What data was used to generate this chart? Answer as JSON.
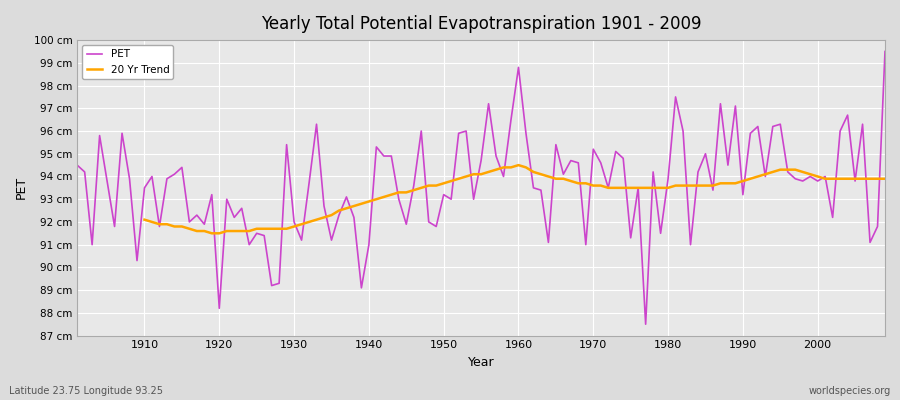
{
  "title": "Yearly Total Potential Evapotranspiration 1901 - 2009",
  "xlabel": "Year",
  "ylabel": "PET",
  "subtitle_left": "Latitude 23.75 Longitude 93.25",
  "subtitle_right": "worldspecies.org",
  "pet_color": "#cc44cc",
  "trend_color": "#ffa500",
  "background_color": "#dcdcdc",
  "plot_bg_color": "#e8e8e8",
  "ylim": [
    87,
    100
  ],
  "xlim": [
    1901,
    2009
  ],
  "years": [
    1901,
    1902,
    1903,
    1904,
    1905,
    1906,
    1907,
    1908,
    1909,
    1910,
    1911,
    1912,
    1913,
    1914,
    1915,
    1916,
    1917,
    1918,
    1919,
    1920,
    1921,
    1922,
    1923,
    1924,
    1925,
    1926,
    1927,
    1928,
    1929,
    1930,
    1931,
    1932,
    1933,
    1934,
    1935,
    1936,
    1937,
    1938,
    1939,
    1940,
    1941,
    1942,
    1943,
    1944,
    1945,
    1946,
    1947,
    1948,
    1949,
    1950,
    1951,
    1952,
    1953,
    1954,
    1955,
    1956,
    1957,
    1958,
    1959,
    1960,
    1961,
    1962,
    1963,
    1964,
    1965,
    1966,
    1967,
    1968,
    1969,
    1970,
    1971,
    1972,
    1973,
    1974,
    1975,
    1976,
    1977,
    1978,
    1979,
    1980,
    1981,
    1982,
    1983,
    1984,
    1985,
    1986,
    1987,
    1988,
    1989,
    1990,
    1991,
    1992,
    1993,
    1994,
    1995,
    1996,
    1997,
    1998,
    1999,
    2000,
    2001,
    2002,
    2003,
    2004,
    2005,
    2006,
    2007,
    2008,
    2009
  ],
  "pet_values": [
    94.5,
    94.2,
    91.0,
    95.8,
    93.8,
    91.8,
    95.9,
    93.9,
    90.3,
    93.5,
    94.0,
    91.8,
    93.9,
    94.1,
    94.4,
    92.0,
    92.3,
    91.9,
    93.2,
    88.2,
    93.0,
    92.2,
    92.6,
    91.0,
    91.5,
    91.4,
    89.2,
    89.3,
    95.4,
    92.0,
    91.2,
    93.7,
    96.3,
    92.7,
    91.2,
    92.3,
    93.1,
    92.2,
    89.1,
    91.0,
    95.3,
    94.9,
    94.9,
    93.0,
    91.9,
    93.6,
    96.0,
    92.0,
    91.8,
    93.2,
    93.0,
    95.9,
    96.0,
    93.0,
    94.7,
    97.2,
    94.9,
    94.0,
    96.5,
    98.8,
    95.9,
    93.5,
    93.4,
    91.1,
    95.4,
    94.1,
    94.7,
    94.6,
    91.0,
    95.2,
    94.6,
    93.5,
    95.1,
    94.8,
    91.3,
    93.5,
    87.5,
    94.2,
    91.5,
    93.9,
    97.5,
    96.0,
    91.0,
    94.2,
    95.0,
    93.4,
    97.2,
    94.5,
    97.1,
    93.2,
    95.9,
    96.2,
    94.0,
    96.2,
    96.3,
    94.2,
    93.9,
    93.8,
    94.0,
    93.8,
    94.0,
    92.2,
    96.0,
    96.7,
    93.8,
    96.3,
    91.1,
    91.8,
    99.5
  ],
  "trend_years": [
    1910,
    1911,
    1912,
    1913,
    1914,
    1915,
    1916,
    1917,
    1918,
    1919,
    1920,
    1921,
    1922,
    1923,
    1924,
    1925,
    1926,
    1927,
    1928,
    1929,
    1930,
    1931,
    1932,
    1933,
    1934,
    1935,
    1936,
    1937,
    1938,
    1939,
    1940,
    1941,
    1942,
    1943,
    1944,
    1945,
    1946,
    1947,
    1948,
    1949,
    1950,
    1951,
    1952,
    1953,
    1954,
    1955,
    1956,
    1957,
    1958,
    1959,
    1960,
    1961,
    1962,
    1963,
    1964,
    1965,
    1966,
    1967,
    1968,
    1969,
    1970,
    1971,
    1972,
    1973,
    1974,
    1975,
    1976,
    1977,
    1978,
    1979,
    1980,
    1981,
    1982,
    1983,
    1984,
    1985,
    1986,
    1987,
    1988,
    1989,
    1990,
    1991,
    1992,
    1993,
    1994,
    1995,
    1996,
    1997,
    1998,
    1999,
    2000,
    2001,
    2002,
    2003,
    2004,
    2005,
    2006,
    2007,
    2008,
    2009
  ],
  "trend_values": [
    92.1,
    92.0,
    91.9,
    91.9,
    91.8,
    91.8,
    91.7,
    91.6,
    91.6,
    91.5,
    91.5,
    91.6,
    91.6,
    91.6,
    91.6,
    91.7,
    91.7,
    91.7,
    91.7,
    91.7,
    91.8,
    91.9,
    92.0,
    92.1,
    92.2,
    92.3,
    92.5,
    92.6,
    92.7,
    92.8,
    92.9,
    93.0,
    93.1,
    93.2,
    93.3,
    93.3,
    93.4,
    93.5,
    93.6,
    93.6,
    93.7,
    93.8,
    93.9,
    94.0,
    94.1,
    94.1,
    94.2,
    94.3,
    94.4,
    94.4,
    94.5,
    94.4,
    94.2,
    94.1,
    94.0,
    93.9,
    93.9,
    93.8,
    93.7,
    93.7,
    93.6,
    93.6,
    93.5,
    93.5,
    93.5,
    93.5,
    93.5,
    93.5,
    93.5,
    93.5,
    93.5,
    93.6,
    93.6,
    93.6,
    93.6,
    93.6,
    93.6,
    93.7,
    93.7,
    93.7,
    93.8,
    93.9,
    94.0,
    94.1,
    94.2,
    94.3,
    94.3,
    94.3,
    94.2,
    94.1,
    94.0,
    93.9,
    93.9,
    93.9,
    93.9,
    93.9,
    93.9,
    93.9,
    93.9,
    93.9
  ]
}
